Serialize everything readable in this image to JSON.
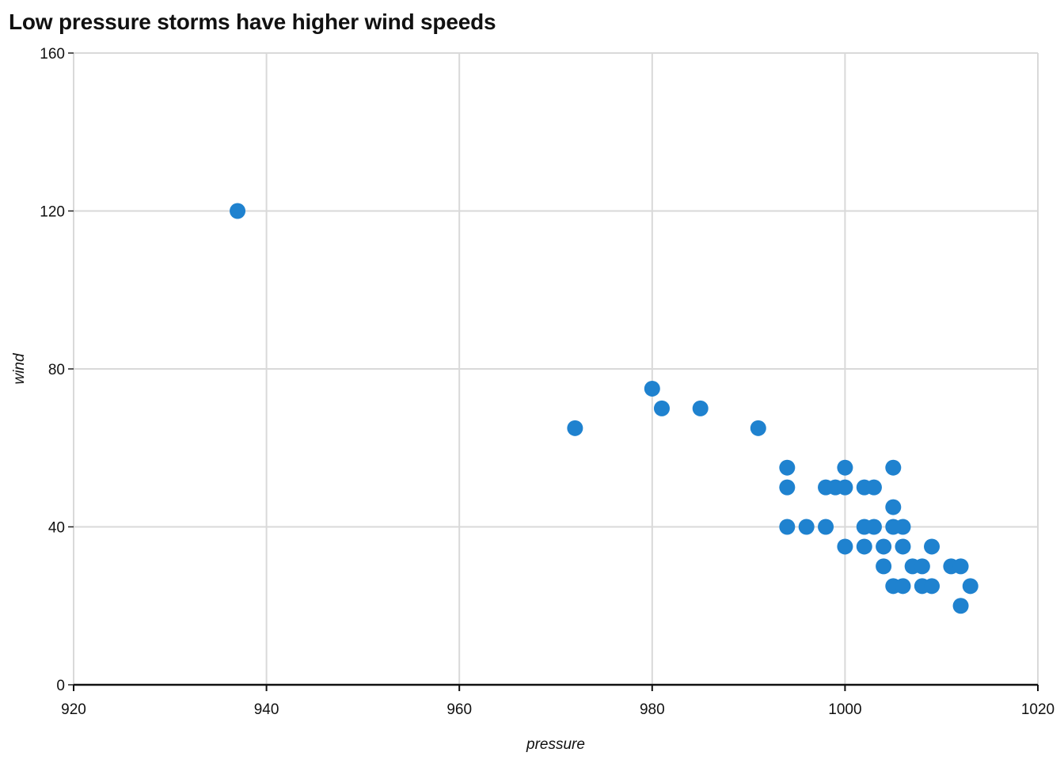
{
  "chart_data": {
    "type": "scatter",
    "title": "Low pressure storms have higher wind speeds",
    "xlabel": "pressure",
    "ylabel": "wind",
    "xlim": [
      920,
      1020
    ],
    "ylim": [
      0,
      160
    ],
    "x_ticks": [
      920,
      940,
      960,
      980,
      1000,
      1020
    ],
    "y_ticks": [
      0,
      40,
      80,
      120,
      160
    ],
    "grid": true,
    "point_color": "#1f82cf",
    "points": [
      {
        "x": 937,
        "y": 120
      },
      {
        "x": 972,
        "y": 65
      },
      {
        "x": 980,
        "y": 75
      },
      {
        "x": 981,
        "y": 70
      },
      {
        "x": 985,
        "y": 70
      },
      {
        "x": 991,
        "y": 65
      },
      {
        "x": 994,
        "y": 55
      },
      {
        "x": 994,
        "y": 50
      },
      {
        "x": 994,
        "y": 40
      },
      {
        "x": 996,
        "y": 40
      },
      {
        "x": 998,
        "y": 50
      },
      {
        "x": 998,
        "y": 40
      },
      {
        "x": 999,
        "y": 50
      },
      {
        "x": 1000,
        "y": 55
      },
      {
        "x": 1000,
        "y": 50
      },
      {
        "x": 1000,
        "y": 35
      },
      {
        "x": 1002,
        "y": 50
      },
      {
        "x": 1002,
        "y": 40
      },
      {
        "x": 1002,
        "y": 35
      },
      {
        "x": 1003,
        "y": 50
      },
      {
        "x": 1003,
        "y": 40
      },
      {
        "x": 1004,
        "y": 35
      },
      {
        "x": 1004,
        "y": 30
      },
      {
        "x": 1005,
        "y": 55
      },
      {
        "x": 1005,
        "y": 45
      },
      {
        "x": 1005,
        "y": 40
      },
      {
        "x": 1005,
        "y": 25
      },
      {
        "x": 1006,
        "y": 40
      },
      {
        "x": 1006,
        "y": 35
      },
      {
        "x": 1006,
        "y": 25
      },
      {
        "x": 1007,
        "y": 30
      },
      {
        "x": 1008,
        "y": 30
      },
      {
        "x": 1008,
        "y": 25
      },
      {
        "x": 1009,
        "y": 35
      },
      {
        "x": 1009,
        "y": 25
      },
      {
        "x": 1011,
        "y": 30
      },
      {
        "x": 1012,
        "y": 30
      },
      {
        "x": 1012,
        "y": 20
      },
      {
        "x": 1013,
        "y": 25
      }
    ]
  }
}
